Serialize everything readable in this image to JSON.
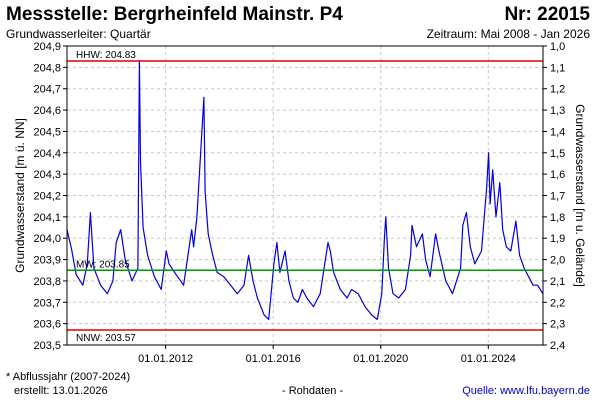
{
  "header": {
    "title": "Messstelle: Bergrheinfeld Mainstr. P4",
    "station_number": "Nr: 22015",
    "aquifer": "Grundwasserleiter: Quartär",
    "period": "Zeitraum: Mai 2008 - Jan 2026"
  },
  "footer": {
    "note": "* Abflussjahr (2007-2024)",
    "created": "erstellt:  13.01.2026",
    "data_type": "- Rohdaten -",
    "source": "Quelle: www.lfu.bayern.de"
  },
  "colors": {
    "series": "#0000e6",
    "extreme_lines": "#dd0000",
    "mean_line": "#009900",
    "grid": "#c8c8c8",
    "source_link": "#0000cc"
  },
  "chart_data": {
    "type": "line",
    "ylabel": "Grundwasserstand [m ü. NN]",
    "ylabel_right": "Grundwasserstand [m u. Gelände]",
    "x_range": [
      "2008-05-01",
      "2026-01-13"
    ],
    "ylim": [
      203.5,
      204.9
    ],
    "ylim_right": [
      2.4,
      1.0
    ],
    "y_ticks": [
      "203,5",
      "203,6",
      "203,7",
      "203,8",
      "203,9",
      "204,0",
      "204,1",
      "204,2",
      "204,3",
      "204,4",
      "204,5",
      "204,6",
      "204,7",
      "204,8",
      "204,9"
    ],
    "y_ticks_right": [
      "2,4",
      "2,3",
      "2,2",
      "2,1",
      "2,0",
      "1,9",
      "1,8",
      "1,7",
      "1,6",
      "1,5",
      "1,4",
      "1,3",
      "1,2",
      "1,1",
      "1,0"
    ],
    "x_ticks": [
      {
        "date": "2012-01-01",
        "label": "01.01.2012"
      },
      {
        "date": "2016-01-01",
        "label": "01.01.2016"
      },
      {
        "date": "2020-01-01",
        "label": "01.01.2020"
      },
      {
        "date": "2024-01-01",
        "label": "01.01.2024"
      }
    ],
    "grid": true,
    "reference_lines": [
      {
        "label": "HHW: 204.83",
        "value": 204.83,
        "kind": "max"
      },
      {
        "label": "MW: 203.85",
        "value": 203.85,
        "kind": "mean"
      },
      {
        "label": "NNW: 203.57",
        "value": 203.57,
        "kind": "min"
      }
    ],
    "series": [
      {
        "points": [
          [
            "2008-05-01",
            204.04
          ],
          [
            "2008-07-01",
            203.95
          ],
          [
            "2008-09-01",
            203.83
          ],
          [
            "2008-12-01",
            203.78
          ],
          [
            "2009-02-01",
            203.88
          ],
          [
            "2009-03-15",
            204.12
          ],
          [
            "2009-05-01",
            203.86
          ],
          [
            "2009-08-01",
            203.78
          ],
          [
            "2009-11-01",
            203.74
          ],
          [
            "2010-01-15",
            203.8
          ],
          [
            "2010-03-01",
            203.98
          ],
          [
            "2010-05-01",
            204.04
          ],
          [
            "2010-07-01",
            203.9
          ],
          [
            "2010-10-01",
            203.8
          ],
          [
            "2010-12-20",
            203.86
          ],
          [
            "2011-01-10",
            204.83
          ],
          [
            "2011-01-25",
            204.36
          ],
          [
            "2011-03-01",
            204.05
          ],
          [
            "2011-05-01",
            203.92
          ],
          [
            "2011-08-01",
            203.82
          ],
          [
            "2011-11-01",
            203.76
          ],
          [
            "2012-01-10",
            203.94
          ],
          [
            "2012-02-15",
            203.88
          ],
          [
            "2012-05-01",
            203.84
          ],
          [
            "2012-09-01",
            203.78
          ],
          [
            "2012-12-20",
            204.04
          ],
          [
            "2013-01-15",
            203.96
          ],
          [
            "2013-03-01",
            204.1
          ],
          [
            "2013-06-03",
            204.66
          ],
          [
            "2013-06-20",
            204.22
          ],
          [
            "2013-08-01",
            204.02
          ],
          [
            "2013-10-01",
            203.92
          ],
          [
            "2013-12-01",
            203.84
          ],
          [
            "2014-03-01",
            203.82
          ],
          [
            "2014-06-01",
            203.78
          ],
          [
            "2014-09-01",
            203.74
          ],
          [
            "2014-12-01",
            203.78
          ],
          [
            "2015-02-01",
            203.92
          ],
          [
            "2015-04-01",
            203.8
          ],
          [
            "2015-06-01",
            203.72
          ],
          [
            "2015-09-01",
            203.64
          ],
          [
            "2015-11-01",
            203.62
          ],
          [
            "2016-01-10",
            203.88
          ],
          [
            "2016-02-20",
            203.98
          ],
          [
            "2016-04-01",
            203.84
          ],
          [
            "2016-06-10",
            203.94
          ],
          [
            "2016-08-01",
            203.8
          ],
          [
            "2016-10-01",
            203.72
          ],
          [
            "2016-12-01",
            203.7
          ],
          [
            "2017-02-01",
            203.76
          ],
          [
            "2017-04-01",
            203.72
          ],
          [
            "2017-07-01",
            203.68
          ],
          [
            "2017-10-01",
            203.74
          ],
          [
            "2018-01-15",
            203.98
          ],
          [
            "2018-02-15",
            203.94
          ],
          [
            "2018-04-01",
            203.84
          ],
          [
            "2018-07-01",
            203.76
          ],
          [
            "2018-10-01",
            203.72
          ],
          [
            "2018-12-01",
            203.76
          ],
          [
            "2019-03-01",
            203.74
          ],
          [
            "2019-06-01",
            203.68
          ],
          [
            "2019-09-01",
            203.64
          ],
          [
            "2019-11-15",
            203.62
          ],
          [
            "2020-01-15",
            203.74
          ],
          [
            "2020-02-20",
            204.0
          ],
          [
            "2020-03-10",
            204.1
          ],
          [
            "2020-04-15",
            203.86
          ],
          [
            "2020-06-15",
            203.74
          ],
          [
            "2020-09-01",
            203.72
          ],
          [
            "2020-12-01",
            203.76
          ],
          [
            "2021-02-10",
            203.92
          ],
          [
            "2021-03-01",
            204.06
          ],
          [
            "2021-05-01",
            203.96
          ],
          [
            "2021-07-20",
            204.02
          ],
          [
            "2021-09-01",
            203.9
          ],
          [
            "2021-11-01",
            203.82
          ],
          [
            "2022-01-15",
            204.02
          ],
          [
            "2022-03-01",
            203.94
          ],
          [
            "2022-06-01",
            203.8
          ],
          [
            "2022-09-01",
            203.74
          ],
          [
            "2022-12-20",
            203.86
          ],
          [
            "2023-01-20",
            204.06
          ],
          [
            "2023-03-10",
            204.12
          ],
          [
            "2023-05-01",
            203.96
          ],
          [
            "2023-07-01",
            203.88
          ],
          [
            "2023-10-01",
            203.94
          ],
          [
            "2023-12-10",
            204.24
          ],
          [
            "2024-01-05",
            204.4
          ],
          [
            "2024-01-25",
            204.16
          ],
          [
            "2024-03-01",
            204.32
          ],
          [
            "2024-04-15",
            204.1
          ],
          [
            "2024-06-05",
            204.26
          ],
          [
            "2024-07-15",
            204.04
          ],
          [
            "2024-09-01",
            203.96
          ],
          [
            "2024-11-01",
            203.94
          ],
          [
            "2025-01-10",
            204.08
          ],
          [
            "2025-03-01",
            203.92
          ],
          [
            "2025-05-01",
            203.86
          ],
          [
            "2025-07-01",
            203.82
          ],
          [
            "2025-09-01",
            203.78
          ],
          [
            "2025-11-01",
            203.78
          ],
          [
            "2026-01-10",
            203.74
          ]
        ]
      }
    ]
  }
}
